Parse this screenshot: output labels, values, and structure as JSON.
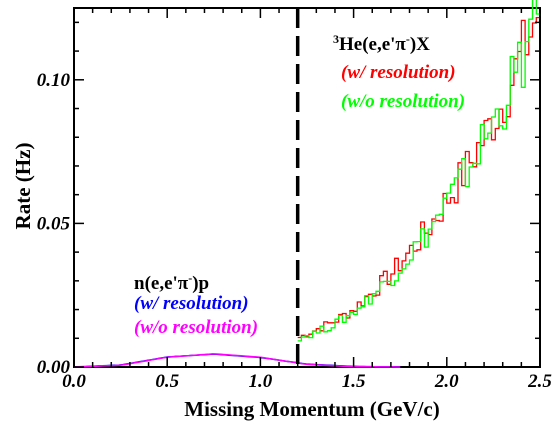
{
  "chart_data": {
    "type": "line",
    "xlabel": "Missing Momentum (GeV/c)",
    "ylabel": "Rate (Hz)",
    "xlim": [
      0,
      2.5
    ],
    "ylim": [
      0,
      0.125
    ],
    "x_ticks": [
      "0.0",
      "0.5",
      "1.0",
      "1.5",
      "2.0",
      "2.5"
    ],
    "y_ticks": [
      "0.00",
      "0.05",
      "0.10"
    ],
    "cut_line_x": 1.2,
    "annotations": {
      "he3_reaction": "He(e,e'π",
      "he3_sup_mass": "3",
      "he3_sup_charge": "-",
      "he3_suffix": ")X",
      "he3_with_res": "(w/ resolution)",
      "he3_without_res": "(w/o resolution)",
      "n_reaction": "n(e,e'π",
      "n_sup_charge": "-",
      "n_suffix": ")p",
      "n_with_res": "(w/ resolution)",
      "n_without_res": "(w/o resolution)"
    },
    "series": [
      {
        "name": "He3 (w/ resolution)",
        "color": "#ff0000",
        "style": "histogram",
        "x": [
          1.2,
          1.3,
          1.4,
          1.5,
          1.6,
          1.7,
          1.8,
          1.9,
          2.0,
          2.1,
          2.2,
          2.3,
          2.4,
          2.5
        ],
        "y": [
          0.01,
          0.013,
          0.016,
          0.02,
          0.026,
          0.032,
          0.04,
          0.048,
          0.058,
          0.068,
          0.08,
          0.092,
          0.108,
          0.125
        ]
      },
      {
        "name": "He3 (w/o resolution)",
        "color": "#00ff00",
        "style": "histogram",
        "x": [
          1.2,
          1.3,
          1.4,
          1.5,
          1.6,
          1.7,
          1.8,
          1.9,
          2.0,
          2.1,
          2.2,
          2.3,
          2.4,
          2.5
        ],
        "y": [
          0.01,
          0.012,
          0.015,
          0.019,
          0.025,
          0.031,
          0.039,
          0.047,
          0.057,
          0.067,
          0.079,
          0.091,
          0.106,
          0.122
        ]
      },
      {
        "name": "n (w/ resolution)",
        "color": "#0000ff",
        "style": "smooth",
        "x": [
          0.0,
          0.25,
          0.5,
          0.75,
          1.0,
          1.25,
          1.5,
          1.75
        ],
        "y": [
          0.0,
          0.0007,
          0.0035,
          0.0045,
          0.0033,
          0.001,
          0.0002,
          0.0
        ]
      },
      {
        "name": "n (w/o resolution)",
        "color": "#ff00ff",
        "style": "smooth",
        "x": [
          0.0,
          0.25,
          0.5,
          0.75,
          1.0,
          1.25,
          1.5,
          1.75
        ],
        "y": [
          0.0,
          0.0006,
          0.0034,
          0.0046,
          0.0034,
          0.0009,
          0.0001,
          0.0
        ]
      }
    ]
  }
}
